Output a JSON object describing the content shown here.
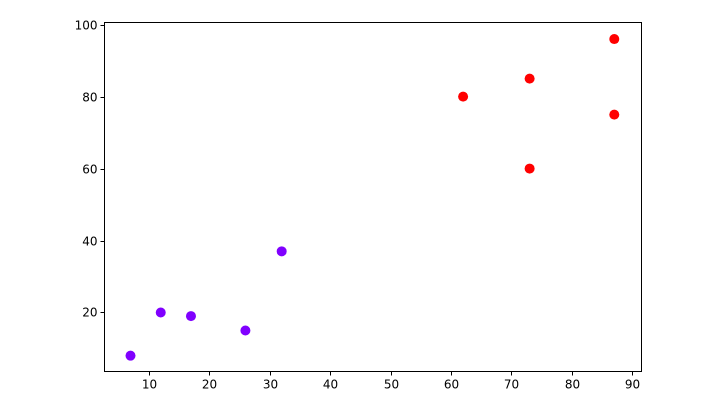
{
  "chart_data": {
    "type": "scatter",
    "title": "",
    "xlabel": "",
    "ylabel": "",
    "xlim": [
      2.7,
      91.5
    ],
    "ylim": [
      3.6,
      100.6
    ],
    "xticks": [
      "10",
      "20",
      "30",
      "40",
      "50",
      "60",
      "70",
      "80",
      "90"
    ],
    "yticks": [
      "20",
      "40",
      "60",
      "80",
      "100"
    ],
    "grid": false,
    "series": [
      {
        "color": "#8000ff",
        "points": [
          [
            7,
            8
          ],
          [
            12,
            20
          ],
          [
            17,
            19
          ],
          [
            26,
            15
          ],
          [
            32,
            37
          ]
        ]
      },
      {
        "color": "#ff0000",
        "points": [
          [
            62,
            80
          ],
          [
            73,
            85
          ],
          [
            73,
            60
          ],
          [
            87,
            96
          ],
          [
            87,
            75
          ]
        ]
      }
    ]
  }
}
